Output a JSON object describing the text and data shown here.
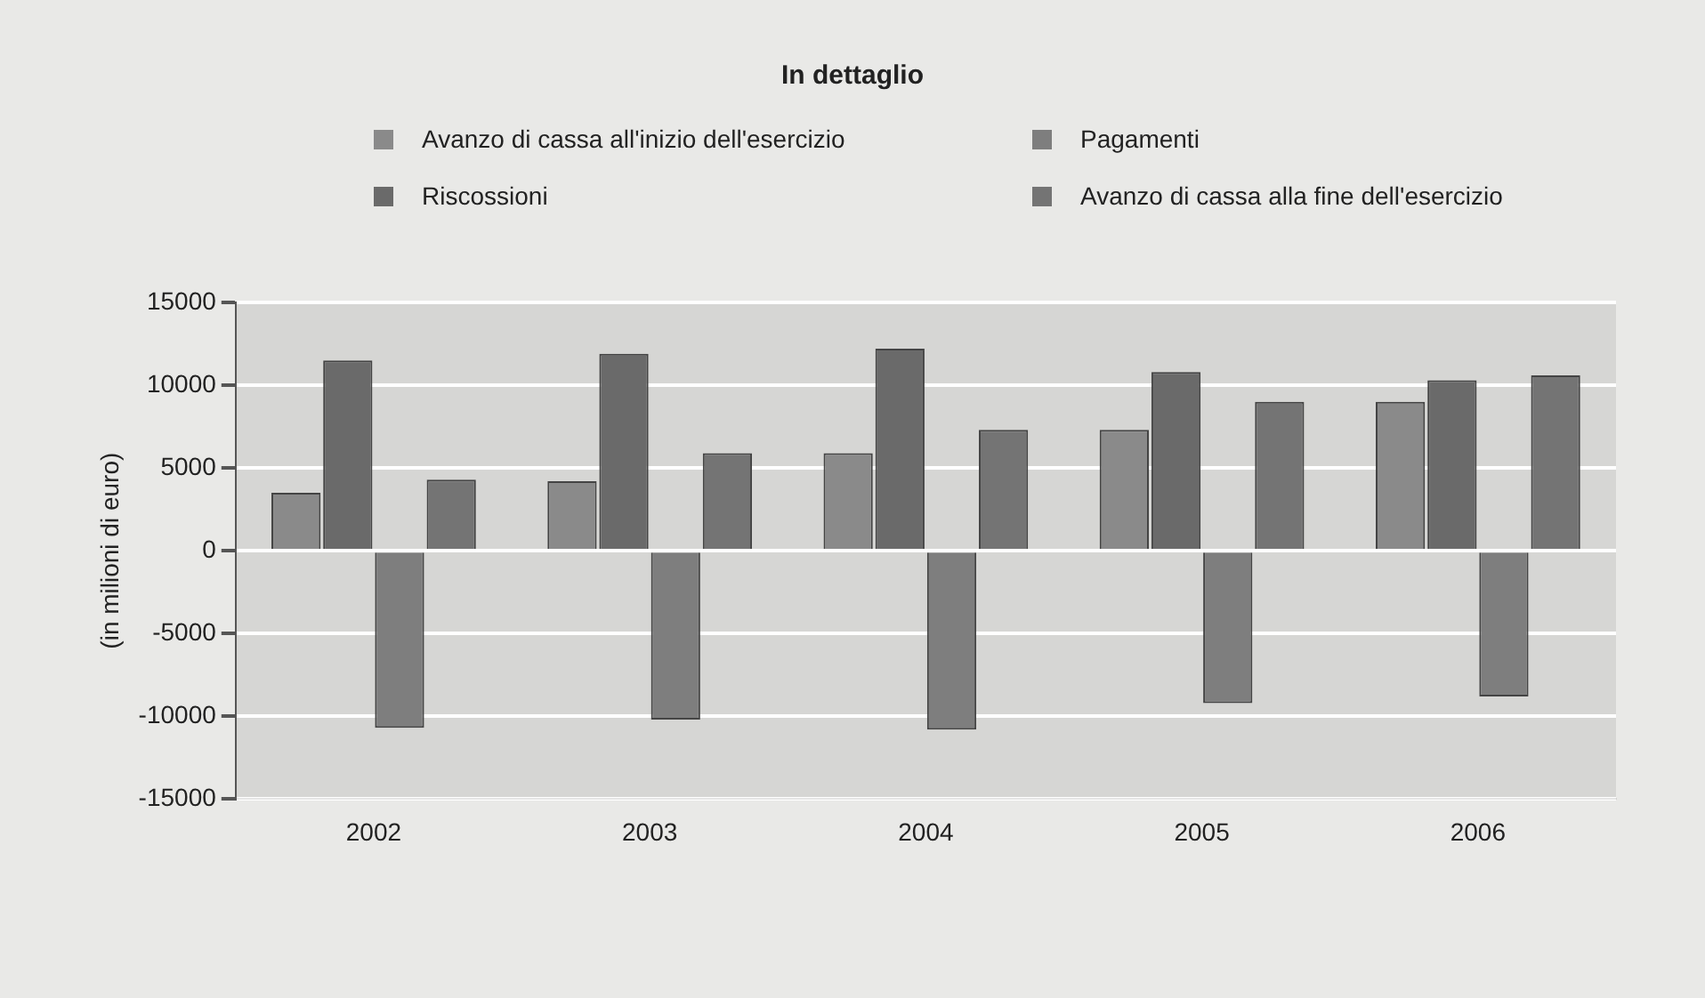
{
  "chart_data": {
    "type": "bar",
    "title": "In dettaglio",
    "ylabel": "(in milioni di euro)",
    "categories": [
      "2002",
      "2003",
      "2004",
      "2005",
      "2006"
    ],
    "series": [
      {
        "name": "Avanzo di cassa all'inizio dell'esercizio",
        "color": "#8a8a8a",
        "values": [
          3500,
          4200,
          5900,
          7300,
          9000
        ]
      },
      {
        "name": "Riscossioni",
        "color": "#6a6a6a",
        "values": [
          11500,
          11900,
          12200,
          10800,
          10300
        ]
      },
      {
        "name": "Pagamenti",
        "color": "#7e7e7e",
        "values": [
          -10700,
          -10200,
          -10800,
          -9200,
          -8800
        ]
      },
      {
        "name": "Avanzo di cassa alla fine dell'esercizio",
        "color": "#747474",
        "values": [
          4300,
          5900,
          7300,
          9000,
          10600
        ]
      }
    ],
    "ylim": [
      -15000,
      15000
    ],
    "yticks": [
      -15000,
      -10000,
      -5000,
      0,
      5000,
      10000,
      15000
    ],
    "grid": "y",
    "legend": "top"
  }
}
